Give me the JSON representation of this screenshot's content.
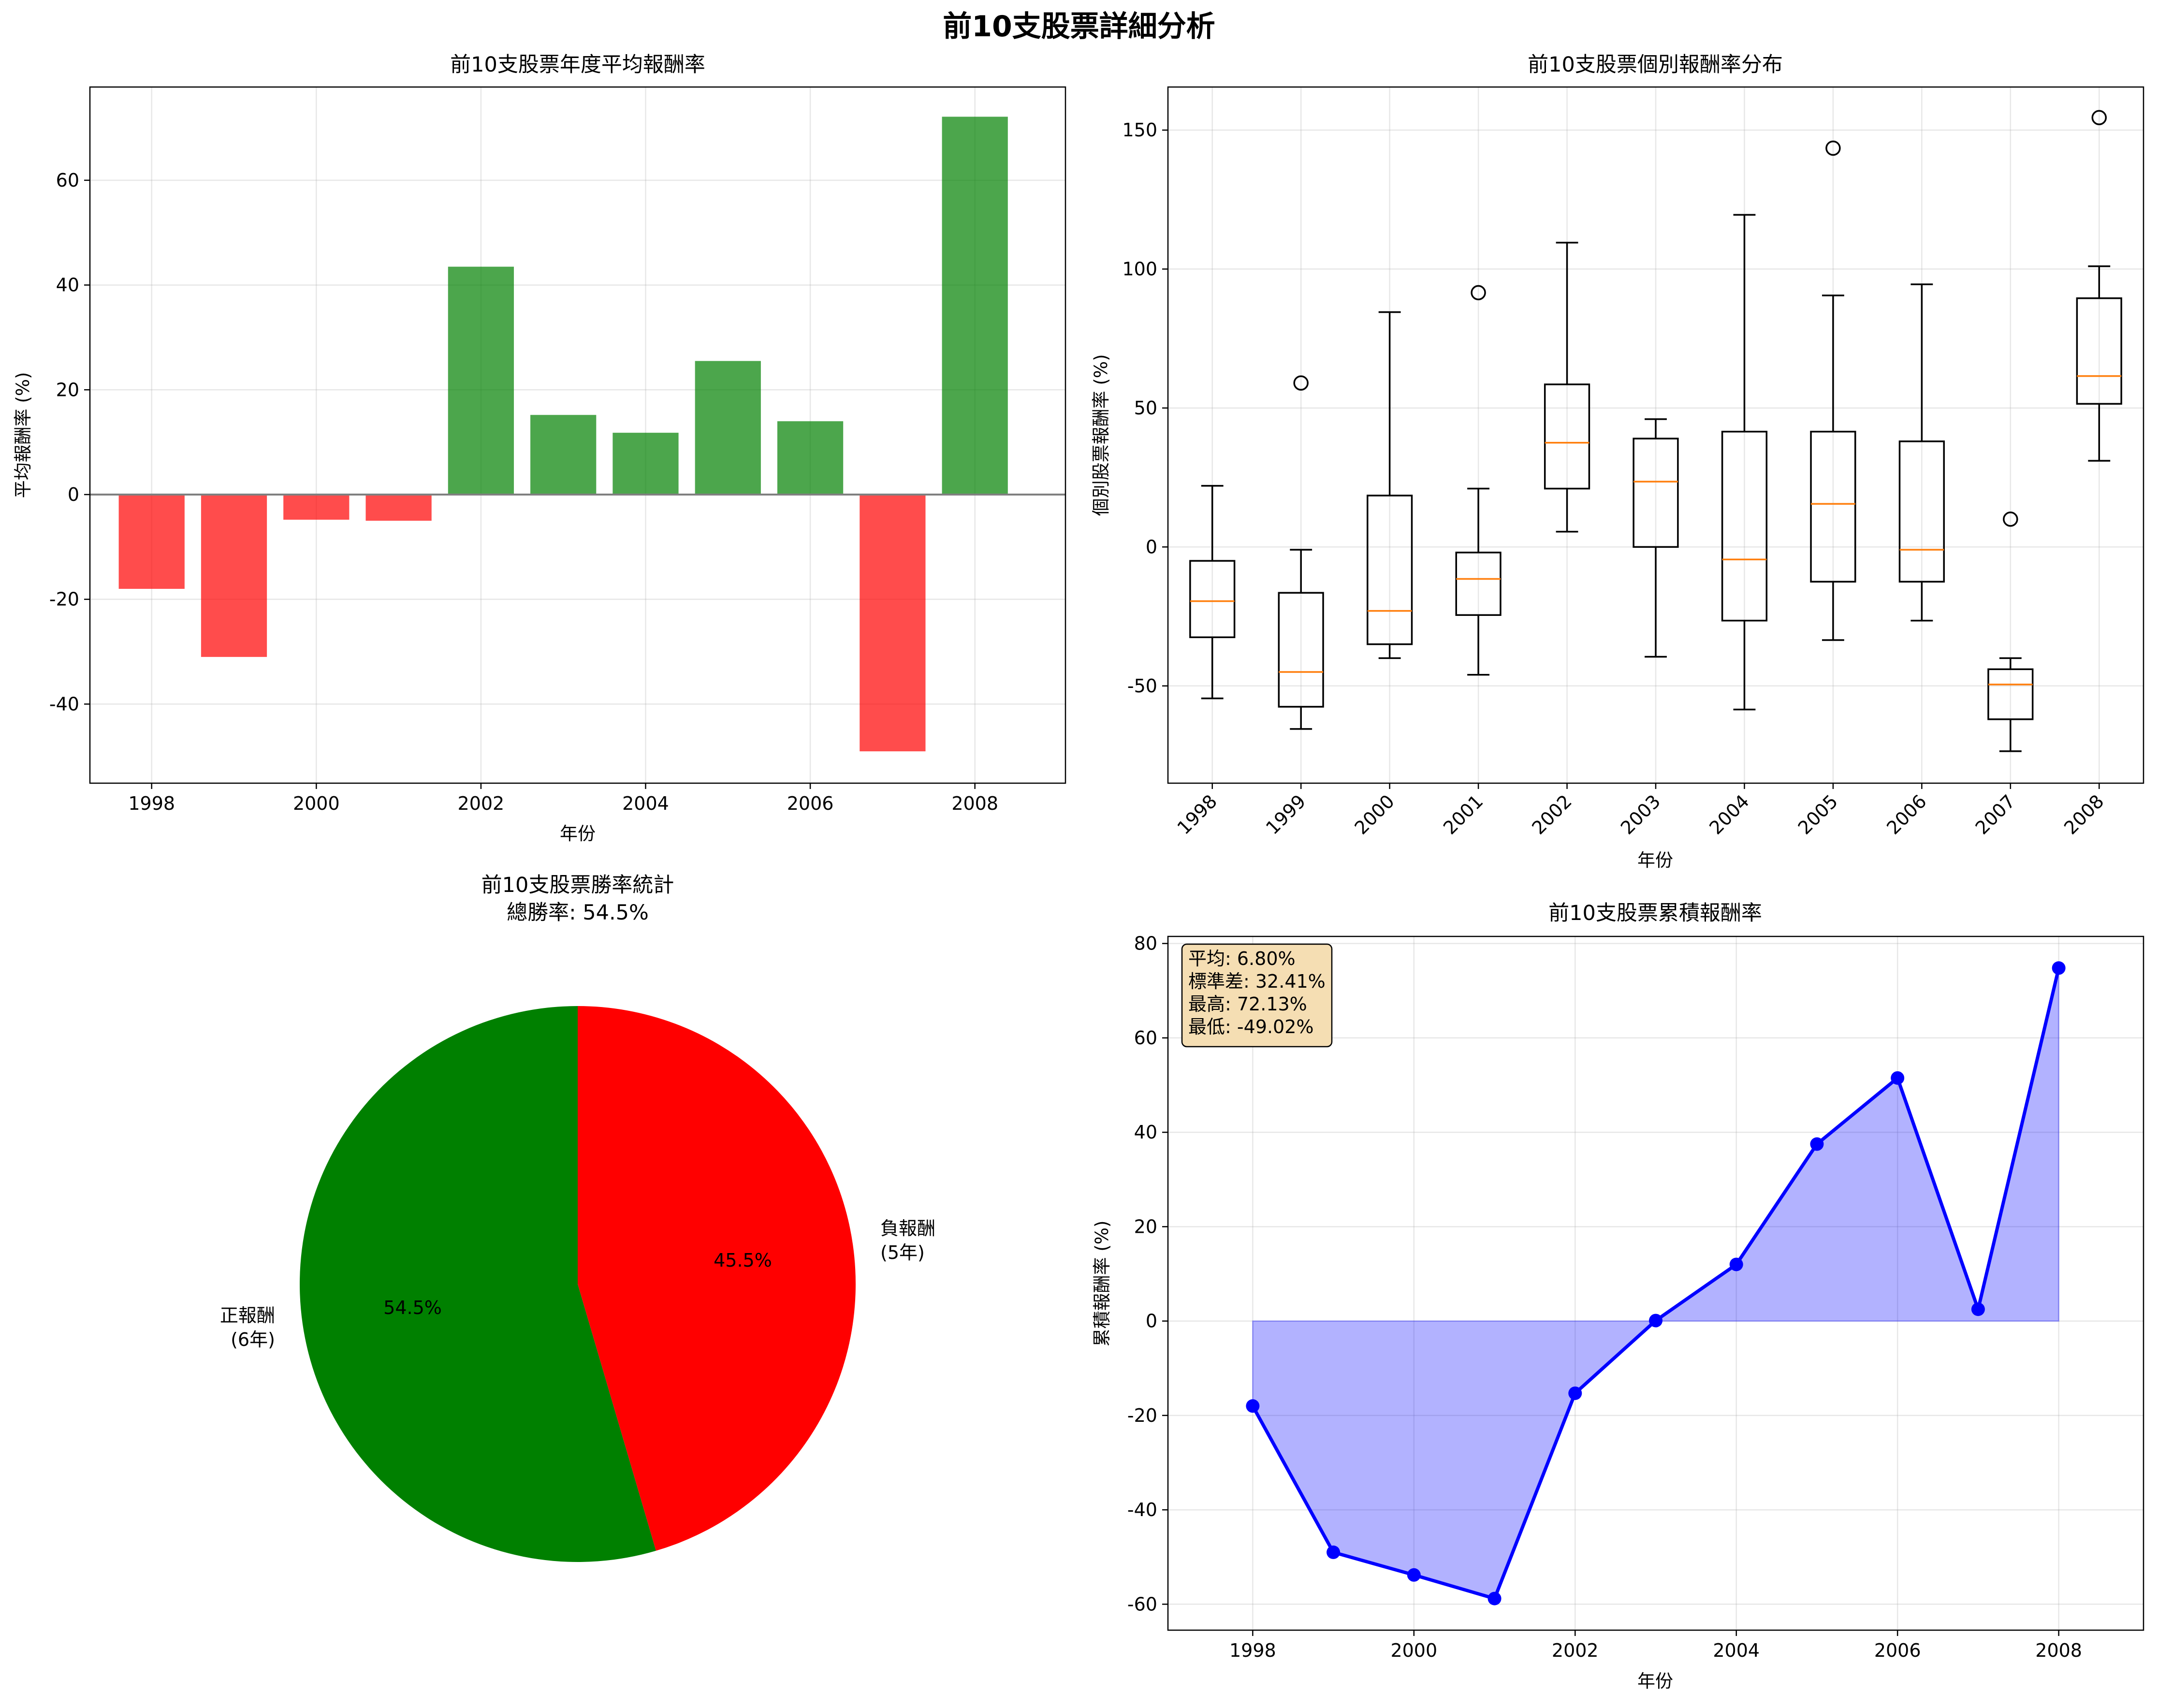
{
  "figure": {
    "title": "前10支股票詳細分析"
  },
  "panels": {
    "bar": {
      "title": "前10支股票年度平均報酬率",
      "xlabel": "年份",
      "ylabel": "平均報酬率 (%)"
    },
    "box": {
      "title": "前10支股票個別報酬率分布",
      "xlabel": "年份",
      "ylabel": "個別股票報酬率 (%)"
    },
    "pie": {
      "title_line1": "前10支股票勝率統計",
      "title_line2": "總勝率: 54.5%"
    },
    "cum": {
      "title": "前10支股票累積報酬率",
      "xlabel": "年份",
      "ylabel": "累積報酬率 (%)"
    }
  },
  "chart_data": [
    {
      "type": "bar",
      "title": "前10支股票年度平均報酬率",
      "xlabel": "年份",
      "ylabel": "平均報酬率 (%)",
      "categories": [
        1998,
        1999,
        2000,
        2001,
        2002,
        2003,
        2004,
        2005,
        2006,
        2007,
        2008
      ],
      "values": [
        -18.0,
        -31.0,
        -4.8,
        -5.0,
        43.5,
        15.2,
        11.8,
        25.5,
        14.0,
        -49.02,
        72.13
      ],
      "xticks": [
        1998,
        2000,
        2002,
        2004,
        2006,
        2008
      ],
      "yticks": [
        -40,
        -20,
        0,
        20,
        40,
        60
      ],
      "xlim": [
        1997.25,
        2009.1
      ],
      "ylim": [
        -55.1,
        77.8
      ],
      "colors": {
        "positive": "#008000",
        "negative": "#ff0000"
      },
      "grid": true
    },
    {
      "type": "box",
      "title": "前10支股票個別報酬率分布",
      "xlabel": "年份",
      "ylabel": "個別股票報酬率 (%)",
      "categories": [
        "1998",
        "1999",
        "2000",
        "2001",
        "2002",
        "2003",
        "2004",
        "2005",
        "2006",
        "2007",
        "2008"
      ],
      "boxes": [
        {
          "whislo": -54.5,
          "q1": -32.5,
          "med": -19.5,
          "q3": -5.0,
          "whishi": 22.0,
          "fliers": []
        },
        {
          "whislo": -65.5,
          "q1": -57.5,
          "med": -45.0,
          "q3": -16.5,
          "whishi": -1.0,
          "fliers": [
            59.0
          ]
        },
        {
          "whislo": -40.0,
          "q1": -35.0,
          "med": -23.0,
          "q3": 18.5,
          "whishi": 84.5,
          "fliers": []
        },
        {
          "whislo": -46.0,
          "q1": -24.5,
          "med": -11.5,
          "q3": -2.0,
          "whishi": 21.0,
          "fliers": [
            91.5
          ]
        },
        {
          "whislo": 5.5,
          "q1": 21.0,
          "med": 37.5,
          "q3": 58.5,
          "whishi": 109.5,
          "fliers": []
        },
        {
          "whislo": -39.5,
          "q1": 0.0,
          "med": 23.5,
          "q3": 39.0,
          "whishi": 46.0,
          "fliers": []
        },
        {
          "whislo": -58.5,
          "q1": -26.5,
          "med": -4.5,
          "q3": 41.5,
          "whishi": 119.5,
          "fliers": []
        },
        {
          "whislo": -33.5,
          "q1": -12.5,
          "med": 15.5,
          "q3": 41.5,
          "whishi": 90.5,
          "fliers": [
            143.5
          ]
        },
        {
          "whislo": -26.5,
          "q1": -12.5,
          "med": -1.0,
          "q3": 38.0,
          "whishi": 94.5,
          "fliers": []
        },
        {
          "whislo": -73.5,
          "q1": -62.0,
          "med": -49.5,
          "q3": -44.0,
          "whishi": -40.0,
          "fliers": [
            10.0
          ]
        },
        {
          "whislo": 31.0,
          "q1": 51.5,
          "med": 61.5,
          "q3": 89.5,
          "whishi": 101.0,
          "fliers": [
            154.5
          ]
        }
      ],
      "yticks": [
        -50,
        0,
        50,
        100,
        150
      ],
      "ylim": [
        -85.0,
        165.5
      ],
      "colors": {
        "median": "#ff7f0e",
        "box": "#000000"
      },
      "grid": true
    },
    {
      "type": "pie",
      "title": "前10支股票勝率統計\n總勝率: 54.5%",
      "slices": [
        {
          "label": "正報酬\n(6年)",
          "label_lines": [
            "正報酬",
            "(6年)"
          ],
          "count": 6,
          "pct_label": "54.5%",
          "color": "#008000"
        },
        {
          "label": "負報酬\n(5年)",
          "label_lines": [
            "負報酬",
            "(5年)"
          ],
          "count": 5,
          "pct_label": "45.5%",
          "color": "#ff0000"
        }
      ]
    },
    {
      "type": "line",
      "title": "前10支股票累積報酬率",
      "xlabel": "年份",
      "ylabel": "累積報酬率 (%)",
      "x": [
        1998,
        1999,
        2000,
        2001,
        2002,
        2003,
        2004,
        2005,
        2006,
        2007,
        2008
      ],
      "y": [
        -18.0,
        -49.0,
        -53.8,
        -58.8,
        -15.3,
        0.1,
        12.0,
        37.5,
        51.5,
        2.5,
        74.8
      ],
      "fill_to_zero": true,
      "xticks": [
        1998,
        2000,
        2002,
        2004,
        2006,
        2008
      ],
      "yticks": [
        -60,
        -40,
        -20,
        0,
        20,
        40,
        60,
        80
      ],
      "xlim": [
        1997.5,
        2008.5
      ],
      "ylim": [
        -65.5,
        81.5
      ],
      "colors": {
        "line": "#0000ff",
        "fill": "#b0b0ff"
      },
      "grid": true,
      "stats_box": {
        "lines": [
          "平均: 6.80%",
          "標準差: 32.41%",
          "最高: 72.13%",
          "最低: -49.02%"
        ],
        "background": "#f5deb3"
      }
    }
  ]
}
